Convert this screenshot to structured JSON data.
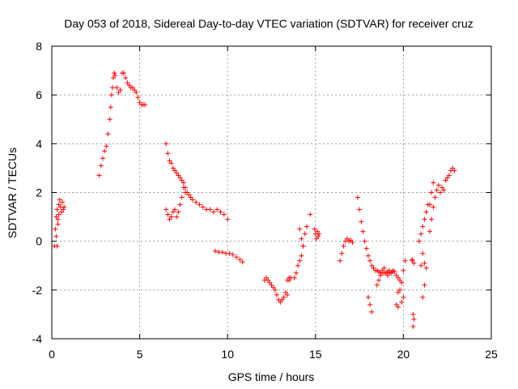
{
  "chart_data": {
    "type": "scatter",
    "title": "Day 053 of 2018, Sidereal Day-to-day VTEC variation (SDTVAR) for receiver cruz",
    "xlabel": "GPS time / hours",
    "ylabel": "SDTVAR / TECUs",
    "xlim": [
      0,
      25
    ],
    "ylim": [
      -4,
      8
    ],
    "x_ticks": [
      0,
      5,
      10,
      15,
      20,
      25
    ],
    "x_tick_labels": [
      "0",
      "5",
      "10",
      "15",
      "20",
      "25"
    ],
    "y_ticks": [
      -4,
      -2,
      0,
      2,
      4,
      6,
      8
    ],
    "y_tick_labels": [
      "-4",
      "-2",
      "0",
      "2",
      "4",
      "6",
      "8"
    ],
    "grid": true,
    "marker": "+",
    "series_color": "#ff0000",
    "series": [
      {
        "name": "SDTVAR",
        "x": [
          0.15,
          0.2,
          0.25,
          0.3,
          0.35,
          0.4,
          0.45,
          0.5,
          0.55,
          0.6,
          0.65,
          0.7,
          0.25,
          0.3,
          0.35,
          0.4,
          2.7,
          2.8,
          2.9,
          3.0,
          3.1,
          3.2,
          3.3,
          3.35,
          3.4,
          3.45,
          3.5,
          3.55,
          3.6,
          3.7,
          3.8,
          3.9,
          4.0,
          4.1,
          4.2,
          4.3,
          4.4,
          4.5,
          4.6,
          4.7,
          4.8,
          4.9,
          5.0,
          5.1,
          5.2,
          5.3,
          6.5,
          6.6,
          6.7,
          6.8,
          6.9,
          7.0,
          7.1,
          7.2,
          7.3,
          7.4,
          7.5,
          7.6,
          7.7,
          6.5,
          6.6,
          6.7,
          6.8,
          6.9,
          7.0,
          7.1,
          7.2,
          7.3,
          7.4,
          7.5,
          7.6,
          7.8,
          7.9,
          8.0,
          8.2,
          8.4,
          8.6,
          8.8,
          9.0,
          9.2,
          9.4,
          9.6,
          9.8,
          10.0,
          9.3,
          9.5,
          9.7,
          9.9,
          10.1,
          10.3,
          10.5,
          10.7,
          10.85,
          12.1,
          12.2,
          12.3,
          12.4,
          12.5,
          12.6,
          12.7,
          12.8,
          12.9,
          13.0,
          13.1,
          13.2,
          13.3,
          13.4,
          13.5,
          13.6,
          13.4,
          13.5,
          13.8,
          13.9,
          14.0,
          14.1,
          14.2,
          14.3,
          14.4,
          14.5,
          14.1,
          14.2,
          14.3,
          14.7,
          14.95,
          15.0,
          15.05,
          15.1,
          15.15,
          15.2,
          16.4,
          16.5,
          16.6,
          16.7,
          16.8,
          16.9,
          17.0,
          17.1,
          17.4,
          17.5,
          17.6,
          17.7,
          17.8,
          17.9,
          18.0,
          18.1,
          18.2,
          18.3,
          18.4,
          18.5,
          18.6,
          18.7,
          18.8,
          18.9,
          19.0,
          19.1,
          19.2,
          19.3,
          19.4,
          19.5,
          19.6,
          19.7,
          19.8,
          19.9,
          18.5,
          18.6,
          18.7,
          18.8,
          18.9,
          19.0,
          19.1,
          19.2,
          19.3,
          19.4,
          18.2,
          18.1,
          18.0,
          19.7,
          19.8,
          19.9,
          20.0,
          19.6,
          19.7,
          20.0,
          20.1,
          20.5,
          20.55,
          20.6,
          20.5,
          20.55,
          20.6,
          20.9,
          21.0,
          21.1,
          21.2,
          21.3,
          21.4,
          21.0,
          21.1,
          21.2,
          21.1,
          21.2,
          21.3,
          21.5,
          21.6,
          21.7,
          21.8,
          21.9,
          22.0,
          22.1,
          22.2,
          22.3,
          22.4,
          22.5,
          22.6,
          22.7,
          22.8,
          22.9,
          21.5,
          21.6,
          21.7
        ],
        "y": [
          -0.2,
          0.5,
          1.0,
          1.3,
          0.9,
          1.5,
          1.7,
          1.4,
          1.2,
          1.6,
          1.3,
          1.4,
          0.2,
          -0.2,
          0.7,
          1.1,
          2.7,
          3.1,
          3.4,
          3.7,
          3.9,
          4.4,
          5.0,
          5.5,
          6.0,
          6.3,
          6.7,
          6.9,
          6.8,
          6.3,
          6.1,
          6.2,
          6.9,
          6.9,
          6.7,
          6.5,
          6.4,
          6.3,
          6.3,
          6.2,
          6.1,
          5.9,
          5.7,
          5.6,
          5.6,
          5.6,
          4.0,
          3.6,
          3.3,
          3.2,
          3.0,
          2.9,
          2.8,
          2.7,
          2.6,
          2.5,
          2.4,
          2.2,
          2.0,
          1.3,
          1.1,
          0.9,
          1.0,
          1.2,
          1.3,
          1.0,
          1.2,
          1.5,
          1.8,
          2.2,
          2.0,
          1.9,
          1.8,
          1.7,
          1.6,
          1.5,
          1.4,
          1.3,
          1.3,
          1.2,
          1.3,
          1.2,
          1.1,
          0.9,
          -0.4,
          -0.45,
          -0.45,
          -0.5,
          -0.5,
          -0.55,
          -0.65,
          -0.75,
          -0.85,
          -1.6,
          -1.5,
          -1.6,
          -1.7,
          -1.8,
          -1.9,
          -2.0,
          -2.2,
          -2.4,
          -2.5,
          -2.4,
          -2.3,
          -2.1,
          -2.2,
          -1.5,
          -1.5,
          -1.6,
          -1.6,
          -1.5,
          -1.3,
          -1.0,
          -0.8,
          -0.6,
          -0.2,
          0.3,
          0.6,
          0.5,
          0.1,
          -0.2,
          1.1,
          0.5,
          0.3,
          0.1,
          0.4,
          0.2,
          0.3,
          -0.8,
          -0.5,
          -0.2,
          0.0,
          0.1,
          0.0,
          0.05,
          -0.05,
          1.8,
          1.3,
          0.8,
          0.4,
          0.0,
          -0.3,
          -0.6,
          -0.8,
          -1.0,
          -1.1,
          -1.2,
          -1.2,
          -1.25,
          -1.3,
          -1.3,
          -1.3,
          -1.3,
          -1.25,
          -1.3,
          -1.3,
          -1.2,
          -1.25,
          -1.4,
          -1.5,
          -1.6,
          -1.7,
          -1.8,
          -1.6,
          -1.4,
          -1.2,
          -1.1,
          -1.3,
          -1.4,
          -1.2,
          -1.3,
          -1.25,
          -2.9,
          -2.6,
          -2.3,
          -2.1,
          -2.0,
          -2.5,
          -2.3,
          -2.6,
          -2.7,
          -1.2,
          -0.8,
          -0.8,
          -3.5,
          -3.2,
          -0.75,
          -3.0,
          -0.9,
          0.0,
          0.3,
          0.6,
          0.9,
          1.2,
          1.5,
          -1.0,
          -0.5,
          -0.9,
          -2.3,
          -1.8,
          -1.1,
          0.4,
          0.9,
          1.4,
          1.8,
          2.1,
          2.3,
          2.0,
          2.2,
          2.1,
          2.5,
          2.6,
          2.7,
          2.9,
          3.0,
          2.9,
          1.5,
          2.0,
          2.4
        ]
      }
    ]
  }
}
